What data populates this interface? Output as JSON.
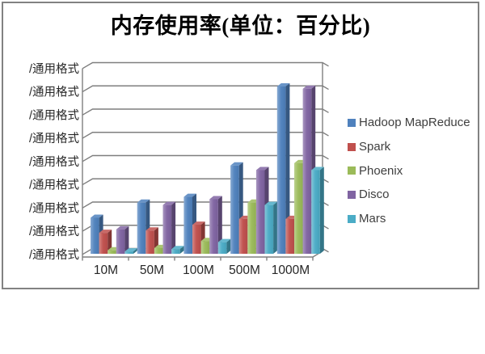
{
  "chart_data": {
    "type": "bar",
    "style": "3d-column",
    "title": "内存使用率(单位：百分比)",
    "categories": [
      "10M",
      "50M",
      "100M",
      "500M",
      "1000M"
    ],
    "series": [
      {
        "name": "Hadoop MapReduce",
        "color": "#4F81BD",
        "values": [
          1.55,
          2.2,
          2.45,
          3.8,
          7.2
        ]
      },
      {
        "name": "Spark",
        "color": "#C0504D",
        "values": [
          0.9,
          1.0,
          1.25,
          1.5,
          1.5
        ]
      },
      {
        "name": "Phoenix",
        "color": "#9BBB59",
        "values": [
          0.15,
          0.25,
          0.55,
          2.2,
          3.9
        ]
      },
      {
        "name": "Disco",
        "color": "#8064A2",
        "values": [
          1.05,
          2.1,
          2.35,
          3.6,
          7.1
        ]
      },
      {
        "name": "Mars",
        "color": "#4BACC6",
        "values": [
          0.1,
          0.2,
          0.5,
          2.1,
          3.6
        ]
      }
    ],
    "y_axis": {
      "tick_label_text": "/通用格式",
      "tick_count": 9,
      "min": 0,
      "max": 8,
      "note": "every axis tick shows the literal text /通用格式 (broken number format); series values estimated in gridline units"
    },
    "x_axis": {
      "tick_labels": [
        "10M",
        "50M",
        "100M",
        "500M",
        "1000M"
      ]
    },
    "legend": {
      "position": "right",
      "entries": [
        "Hadoop MapReduce",
        "Spark",
        "Phoenix",
        "Disco",
        "Mars"
      ]
    },
    "grid": true,
    "colors": {
      "grid_axis": "#7F7F7F",
      "axis_text": "#262626",
      "legend_text": "#3F3F3F",
      "title_text": "#000000",
      "frame_border": "#828282",
      "background": "#FFFFFF"
    }
  }
}
